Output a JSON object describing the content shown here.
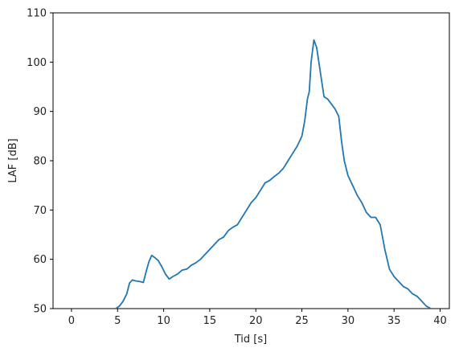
{
  "chart_data": {
    "type": "line",
    "title": "",
    "xlabel": "Tid [s]",
    "ylabel": "LAF [dB]",
    "xlim": [
      -2,
      41
    ],
    "ylim": [
      50,
      110
    ],
    "x_ticks": [
      0,
      5,
      10,
      15,
      20,
      25,
      30,
      35,
      40
    ],
    "y_ticks": [
      50,
      60,
      70,
      80,
      90,
      100,
      110
    ],
    "x_tick_labels": [
      "0",
      "5",
      "10",
      "15",
      "20",
      "25",
      "30",
      "35",
      "40"
    ],
    "y_tick_labels": [
      "50",
      "60",
      "70",
      "80",
      "90",
      "100",
      "110"
    ],
    "grid": false,
    "line_color": "#1f77b4",
    "series": [
      {
        "x": [
          4.8,
          5.2,
          5.6,
          6.0,
          6.3,
          6.6,
          7.0,
          7.4,
          7.8,
          8.1,
          8.4,
          8.7,
          9.0,
          9.4,
          9.8,
          10.2,
          10.6,
          11.0,
          11.5,
          12.0,
          12.5,
          13.0,
          13.5,
          14.0,
          14.5,
          15.0,
          15.5,
          16.0,
          16.5,
          17.0,
          17.5,
          18.0,
          18.5,
          19.0,
          19.5,
          20.0,
          20.5,
          21.0,
          21.5,
          22.0,
          22.5,
          23.0,
          23.5,
          24.0,
          24.5,
          25.0,
          25.3,
          25.6,
          25.8,
          26.0,
          26.3,
          26.6,
          27.0,
          27.4,
          27.8,
          28.2,
          28.6,
          29.0,
          29.3,
          29.6,
          30.0,
          30.5,
          31.0,
          31.5,
          32.0,
          32.5,
          33.0,
          33.5,
          34.0,
          34.5,
          35.0,
          35.5,
          36.0,
          36.5,
          37.0,
          37.5,
          38.0,
          38.5,
          39.0
        ],
        "y": [
          50.0,
          50.5,
          51.5,
          53.0,
          55.2,
          55.8,
          55.6,
          55.5,
          55.3,
          57.5,
          59.5,
          60.8,
          60.4,
          59.8,
          58.5,
          57.0,
          56.0,
          56.5,
          57.0,
          57.8,
          58.0,
          58.8,
          59.3,
          60.0,
          61.0,
          62.0,
          63.0,
          64.0,
          64.5,
          65.8,
          66.5,
          67.0,
          68.5,
          70.0,
          71.5,
          72.5,
          74.0,
          75.5,
          76.0,
          76.8,
          77.5,
          78.5,
          80.0,
          81.5,
          83.0,
          85.0,
          88.0,
          92.5,
          94.0,
          100.0,
          104.5,
          103.0,
          98.0,
          93.0,
          92.5,
          91.5,
          90.5,
          89.0,
          84.0,
          80.0,
          77.0,
          75.0,
          73.0,
          71.5,
          69.5,
          68.5,
          68.5,
          67.0,
          62.0,
          58.0,
          56.5,
          55.5,
          54.5,
          54.0,
          53.0,
          52.5,
          51.5,
          50.5,
          50.0
        ]
      }
    ]
  }
}
